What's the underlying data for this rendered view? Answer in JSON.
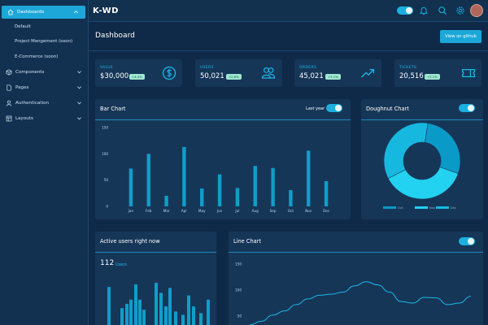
{
  "sidebar": {
    "items": [
      {
        "label": "Dashboards",
        "icon": "home-icon"
      },
      {
        "label": "Components",
        "icon": "box-icon"
      },
      {
        "label": "Pages",
        "icon": "file-icon"
      },
      {
        "label": "Authentication",
        "icon": "user-icon"
      },
      {
        "label": "Layouts",
        "icon": "layout-icon"
      }
    ],
    "dashboards_sub": [
      "Default",
      "Project Mangement (soon)",
      "E-Commerce (soon)"
    ]
  },
  "topbar": {
    "brand": "K-WD"
  },
  "page": {
    "title": "Dashboard",
    "github_button": "View on github"
  },
  "stats": [
    {
      "label": "VALUE",
      "value": "$30,000",
      "badge": "+4.4%",
      "icon": "dollar-icon"
    },
    {
      "label": "USERS",
      "value": "50,021",
      "badge": "+2.6%",
      "icon": "users-icon"
    },
    {
      "label": "ORDERS",
      "value": "45,021",
      "badge": "+3.1%",
      "icon": "trend-up-icon"
    },
    {
      "label": "TICKETS",
      "value": "20,516",
      "badge": "+3.1%",
      "icon": "ticket-icon"
    }
  ],
  "bar_panel": {
    "title": "Bar Chart",
    "toggle_label": "Last year"
  },
  "doughnut_panel": {
    "title": "Doughnut Chart"
  },
  "active_panel": {
    "title": "Active users right now",
    "count": "112",
    "unit": "Users"
  },
  "line_panel": {
    "title": "Line Chart"
  },
  "colors": {
    "accent": "#1da7d9",
    "bar": "#0f9ec9",
    "bg": "#0f2a48",
    "panel": "#163658"
  },
  "chart_data": [
    {
      "type": "bar",
      "title": "Bar Chart",
      "categories": [
        "Jan",
        "Feb",
        "Mar",
        "Apr",
        "May",
        "Jun",
        "Jul",
        "Aug",
        "Sep",
        "Oct",
        "Nov",
        "Dec"
      ],
      "values": [
        72,
        100,
        20,
        113,
        34,
        61,
        35,
        77,
        73,
        31,
        106,
        48
      ],
      "yticks": [
        "0",
        "50",
        "100",
        "150"
      ],
      "ylim": [
        0,
        150
      ]
    },
    {
      "type": "pie",
      "title": "Doughnut Chart",
      "labels": [
        "Oct",
        "Nov",
        "Dec"
      ],
      "values": [
        28,
        37,
        35
      ],
      "colors": [
        "#0a9ac8",
        "#22d2f0",
        "#16b8e0"
      ]
    },
    {
      "type": "bar",
      "title": "Active users right now",
      "values": [
        45,
        20,
        25,
        30,
        48,
        30,
        18,
        50,
        38,
        22,
        44,
        16,
        12,
        35,
        22,
        14,
        30
      ]
    },
    {
      "type": "line",
      "title": "Line Chart",
      "yticks": [
        "50",
        "100",
        "150"
      ],
      "ylim": [
        30,
        160
      ],
      "values": [
        33,
        40,
        52,
        60,
        72,
        83,
        90,
        92,
        96,
        108,
        116,
        110,
        96,
        78,
        75,
        86,
        85,
        72,
        75,
        88
      ]
    }
  ]
}
